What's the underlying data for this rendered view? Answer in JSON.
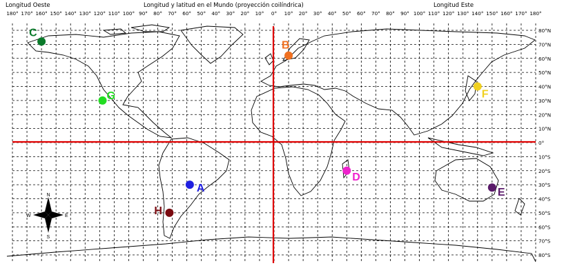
{
  "header": {
    "west_label": "Longitud Oeste",
    "title": "Longitud y latitud en el Mundo (proyección coilíndrica)",
    "east_label": "Longitud Este"
  },
  "longitude_ticks": [
    "180°",
    "170°",
    "160°",
    "150°",
    "140°",
    "130°",
    "120°",
    "110°",
    "100°",
    "90°",
    "80°",
    "70°",
    "60°",
    "50°",
    "40°",
    "30°",
    "20°",
    "10°",
    "0°",
    "10°",
    "20°",
    "30°",
    "40°",
    "50°",
    "60°",
    "70°",
    "80°",
    "90°",
    "100°",
    "110°",
    "120°",
    "130°",
    "140°",
    "150°",
    "160°",
    "170°",
    "180°"
  ],
  "latitude_ticks": [
    "80°N",
    "70°N",
    "60°N",
    "50°N",
    "40°N",
    "30°N",
    "20°N",
    "10°N",
    "0°",
    "10°S",
    "20°S",
    "30°S",
    "40°S",
    "50°S",
    "60°S",
    "70°S",
    "80°S"
  ],
  "markers": [
    {
      "label": "A",
      "lon": -58,
      "lat": -30,
      "color": "#1f1fe0"
    },
    {
      "label": "B",
      "lon": 10,
      "lat": 62,
      "color": "#f07020"
    },
    {
      "label": "C",
      "lon": -160,
      "lat": 72,
      "color": "#0a7a2a"
    },
    {
      "label": "D",
      "lon": 50,
      "lat": -20,
      "color": "#ee22cc"
    },
    {
      "label": "E",
      "lon": 150,
      "lat": -32,
      "color": "#5a1a6a"
    },
    {
      "label": "F",
      "lon": 140,
      "lat": 40,
      "color": "#f0d020"
    },
    {
      "label": "G",
      "lon": -118,
      "lat": 30,
      "color": "#22dd22"
    },
    {
      "label": "H",
      "lon": -72,
      "lat": -50,
      "color": "#7a0a10"
    }
  ],
  "compass": {
    "n": "N",
    "s": "S",
    "e": "E",
    "w": "W"
  }
}
